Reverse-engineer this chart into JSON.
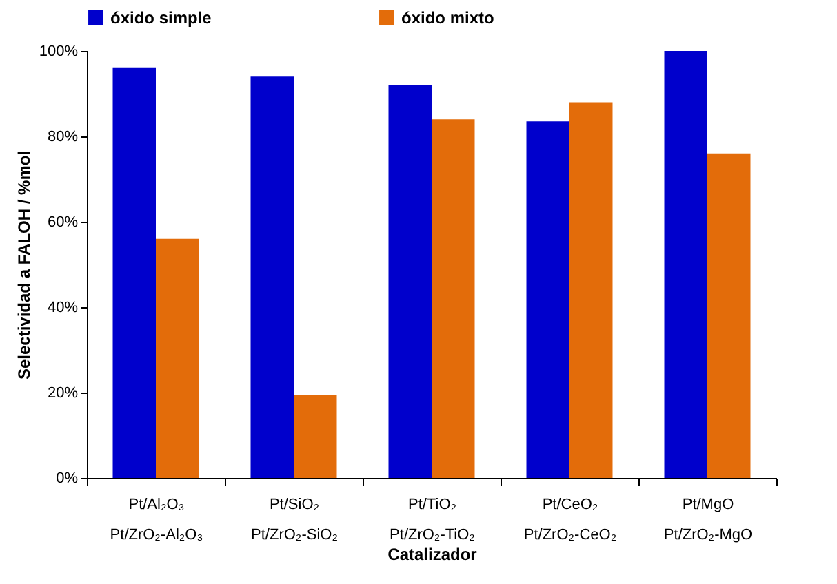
{
  "chart_data": {
    "type": "bar",
    "xlabel": "Catalizador",
    "ylabel": "Selectividad a FALOH / %mol",
    "categories": [
      "Pt/Al₂O₃\nPt/ZrO₂-Al₂O₃",
      "Pt/SiO₂\nPt/ZrO₂-SiO₂",
      "Pt/TiO₂\nPt/ZrO₂-TiO₂",
      "Pt/CeO₂\nPt/ZrO₂-CeO₂",
      "Pt/MgO\nPt/ZrO₂-MgO"
    ],
    "series": [
      {
        "name": "óxido simple",
        "color": "#0000cc",
        "values": [
          96,
          94,
          92,
          83.5,
          100
        ]
      },
      {
        "name": "óxido mixto",
        "color": "#e36c0a",
        "values": [
          56,
          19.5,
          84,
          88,
          76
        ]
      }
    ],
    "ylim": [
      0,
      100
    ],
    "yticks": [
      {
        "value": 0,
        "label": "0%"
      },
      {
        "value": 20,
        "label": "20%"
      },
      {
        "value": 40,
        "label": "40%"
      },
      {
        "value": 60,
        "label": "60%"
      },
      {
        "value": 80,
        "label": "80%"
      },
      {
        "value": 100,
        "label": "100%"
      }
    ],
    "grid": false,
    "legend": "top"
  }
}
